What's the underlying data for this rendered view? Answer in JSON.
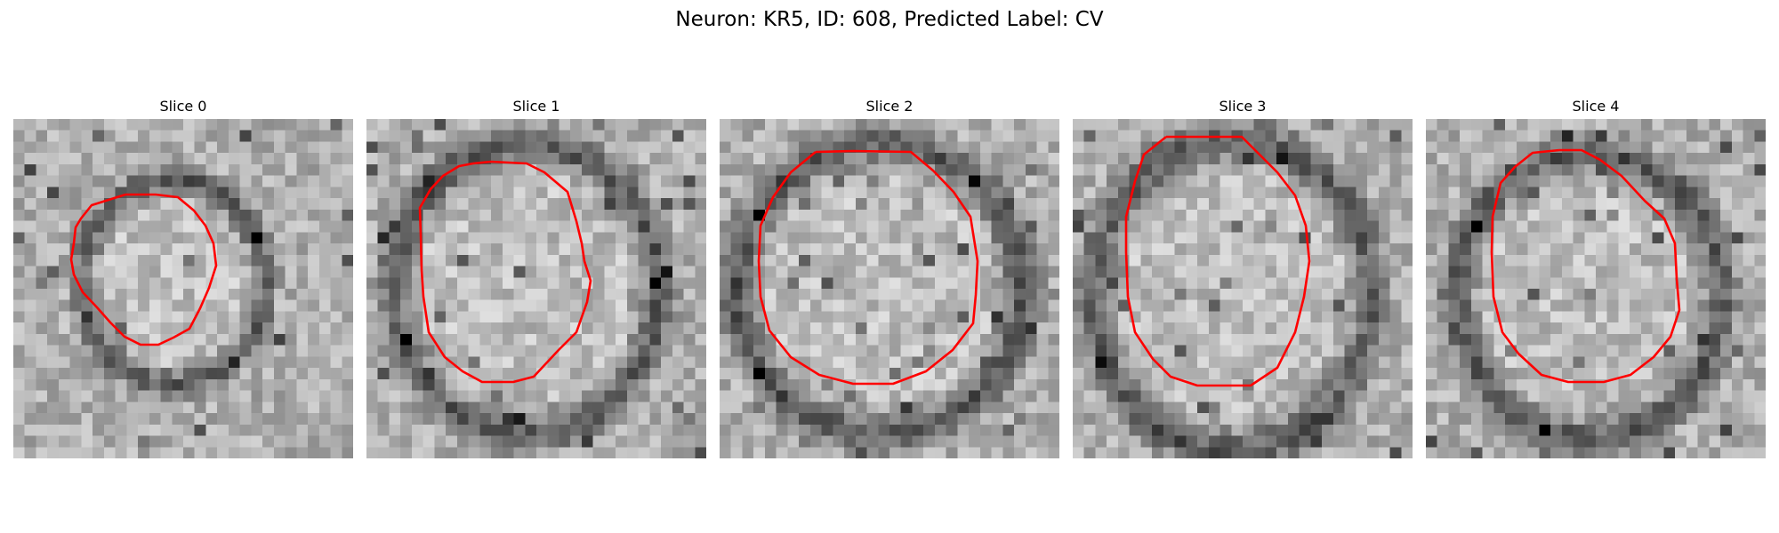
{
  "figure": {
    "title": "Neuron: KR5, ID: 608, Predicted Label: CV"
  },
  "panels": [
    {
      "title": "Slice 0"
    },
    {
      "title": "Slice 1"
    },
    {
      "title": "Slice 2"
    },
    {
      "title": "Slice 3"
    },
    {
      "title": "Slice 4"
    }
  ],
  "colors": {
    "contour": "#ff0000",
    "background": "#ffffff"
  }
}
